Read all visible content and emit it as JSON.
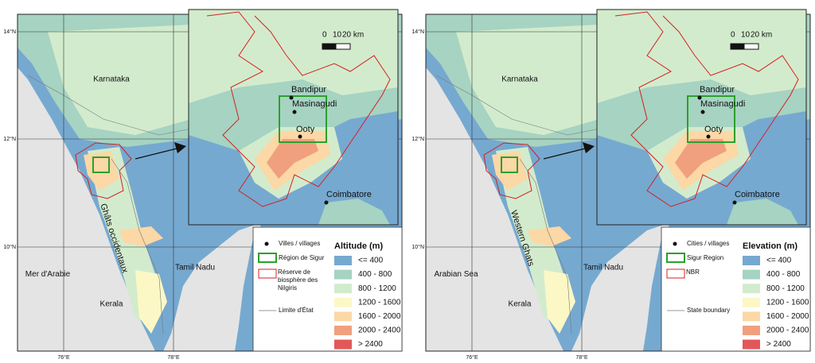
{
  "panels": [
    {
      "lat_labels": [
        "14°N",
        "12°N",
        "10°N"
      ],
      "lon_labels": [
        "76°E",
        "78°E"
      ],
      "places": {
        "state_north": "Karnataka",
        "state_south": "Kerala",
        "state_east": "Tamil Nadu",
        "sea": "Mer d'Arabie",
        "ghats": "Ghâts occidentaux"
      },
      "inset": {
        "scale": [
          "0",
          "10",
          "20 km"
        ],
        "towns": [
          "Bandipur",
          "Masinagudi",
          "Ooty",
          "Coimbatore"
        ]
      },
      "legend": {
        "items": [
          "Villes / villages",
          "Région de Sigur",
          "Réserve de biosphère des Nilgiris",
          "Limite d'État"
        ],
        "title": "Altitude (m)",
        "classes": [
          "<= 400",
          "400 - 800",
          "800 - 1200",
          "1200 - 1600",
          "1600 - 2000",
          "2000 - 2400",
          "> 2400"
        ]
      }
    },
    {
      "lat_labels": [
        "14°N",
        "12°N",
        "10°N"
      ],
      "lon_labels": [
        "76°E",
        "78°E"
      ],
      "places": {
        "state_north": "Karnataka",
        "state_south": "Kerala",
        "state_east": "Tamil Nadu",
        "sea": "Arabian Sea",
        "ghats": "Western Ghats"
      },
      "inset": {
        "scale": [
          "0",
          "10",
          "20 km"
        ],
        "towns": [
          "Bandipur",
          "Masinagudi",
          "Ooty",
          "Coimbatore"
        ]
      },
      "legend": {
        "items": [
          "Cities / villages",
          "Sigur Region",
          "NBR",
          "State boundary"
        ],
        "title": "Elevation (m)",
        "classes": [
          "<= 400",
          "400 - 800",
          "800 - 1200",
          "1200 - 1600",
          "1600 - 2000",
          "2000 - 2400",
          "> 2400"
        ]
      }
    }
  ]
}
